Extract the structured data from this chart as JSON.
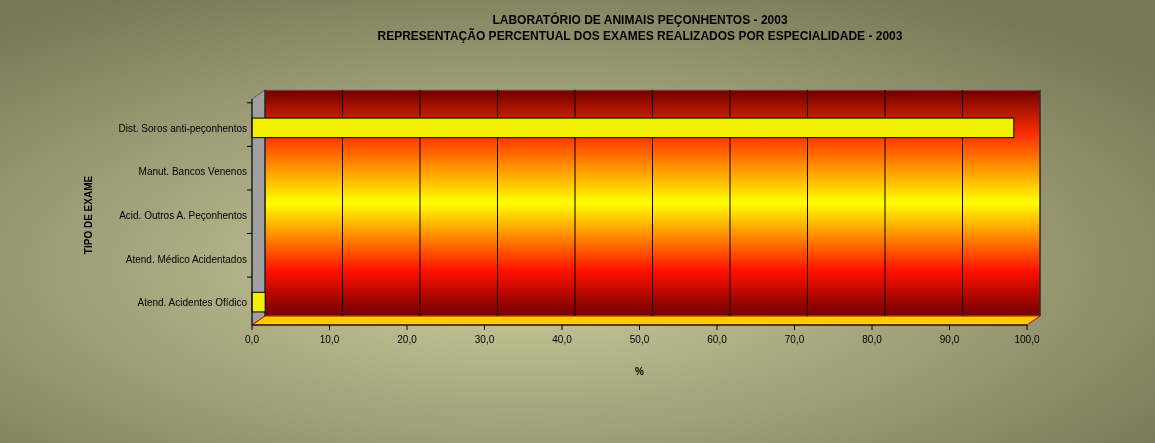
{
  "chart_data": {
    "type": "bar",
    "orientation": "horizontal",
    "title": "LABORATÓRIO DE ANIMAIS PEÇONHENTOS - 2003",
    "subtitle": "REPRESENTAÇÃO PERCENTUAL DOS EXAMES REALIZADOS POR ESPECIALIDADE - 2003",
    "xlabel": "%",
    "ylabel": "TIPO DE EXAME",
    "categories": [
      "Dist. Soros anti-peçonhentos",
      "Manut. Bancos Venenos",
      "Acid. Outros A.  Peçonhentos",
      "Atend. Médico Acidentados",
      "Atend. Acidentes Ofídico"
    ],
    "values": [
      98.3,
      0.0,
      0.0,
      0.0,
      1.7
    ],
    "color": "#f0f000",
    "xlim": [
      0,
      100
    ],
    "xticks": [
      {
        "value": 0,
        "label": "0,0"
      },
      {
        "value": 10,
        "label": "10,0"
      },
      {
        "value": 20,
        "label": "20,0"
      },
      {
        "value": 30,
        "label": "30,0"
      },
      {
        "value": 40,
        "label": "40,0"
      },
      {
        "value": 50,
        "label": "50,0"
      },
      {
        "value": 60,
        "label": "60,0"
      },
      {
        "value": 70,
        "label": "70,0"
      },
      {
        "value": 80,
        "label": "80,0"
      },
      {
        "value": 90,
        "label": "90,0"
      },
      {
        "value": 100,
        "label": "100,0"
      }
    ],
    "grid": "x"
  }
}
